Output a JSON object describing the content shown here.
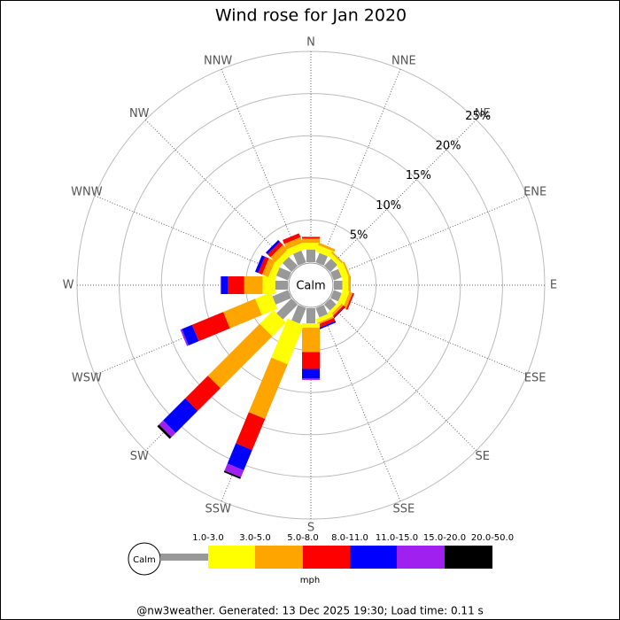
{
  "chart_data": {
    "type": "windrose",
    "title": "Wind rose for Jan 2020",
    "calm_label": "Calm",
    "legend_title": "mph",
    "footer": "@nw3weather. Generated: 13 Dec 2025 19:30; Load time: 0.11 s",
    "categories": [
      "N",
      "NNE",
      "NE",
      "ENE",
      "E",
      "ESE",
      "SE",
      "SSE",
      "S",
      "SSW",
      "SW",
      "WSW",
      "W",
      "WNW",
      "NW",
      "NNW"
    ],
    "rlim": [
      0,
      25
    ],
    "rticks": [
      {
        "value": 5,
        "label": "5%"
      },
      {
        "value": 10,
        "label": "10%"
      },
      {
        "value": 15,
        "label": "15%"
      },
      {
        "value": 20,
        "label": "20%"
      },
      {
        "value": 25,
        "label": "25%"
      }
    ],
    "grid": true,
    "series": [
      {
        "name": "1.0-3.0",
        "color": "#999999",
        "values": [
          1.5,
          1.2,
          1.2,
          1,
          1,
          1,
          1,
          1.2,
          1.8,
          2,
          2.5,
          2,
          1.5,
          1.5,
          1.5,
          1.5
        ]
      },
      {
        "name": "3.0-5.0",
        "color": "#ffff00",
        "values": [
          0.8,
          0.8,
          0.5,
          0.8,
          0.7,
          0.8,
          0.4,
          0.5,
          0.5,
          5,
          2.3,
          2,
          1.5,
          0.8,
          0.7,
          0.8
        ]
      },
      {
        "name": "5.0-8.0",
        "color": "#ffa500",
        "values": [
          0.5,
          0.3,
          0.2,
          0.2,
          0.3,
          0.4,
          0.3,
          0.2,
          2.9,
          7,
          8.7,
          4.1,
          2.2,
          0.8,
          0.8,
          0.7
        ]
      },
      {
        "name": "8.0-11.0",
        "color": "#ff0000",
        "values": [
          0.2,
          0,
          0,
          0,
          0,
          0.2,
          0.2,
          0.4,
          2,
          4,
          3.8,
          4,
          1.9,
          0.5,
          0.5,
          0.5
        ]
      },
      {
        "name": "11.0-15.0",
        "color": "#0000ff",
        "values": [
          0,
          0,
          0,
          0,
          0,
          0,
          0.1,
          0.2,
          1.1,
          2.6,
          3.7,
          1.3,
          0.8,
          0.4,
          0.3,
          0
        ]
      },
      {
        "name": "15.0-20.0",
        "color": "#a020f0",
        "values": [
          0,
          0,
          0,
          0,
          0,
          0,
          0,
          0,
          0.2,
          0.9,
          0.7,
          0.2,
          0.1,
          0,
          0,
          0
        ]
      },
      {
        "name": "20.0-50.0",
        "color": "#000000",
        "values": [
          0,
          0,
          0,
          0,
          0,
          0,
          0,
          0,
          0,
          0.2,
          0.3,
          0,
          0,
          0,
          0,
          0
        ]
      }
    ]
  }
}
